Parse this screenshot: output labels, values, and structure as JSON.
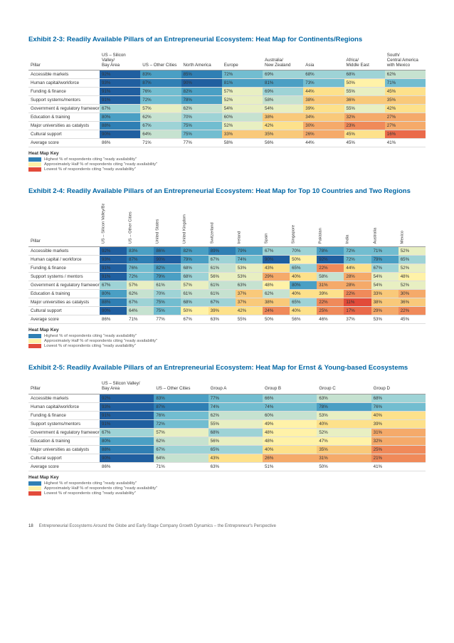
{
  "palette": {
    "gradient": [
      "#e24b3a",
      "#ea6a4a",
      "#f08a5a",
      "#f5aa6a",
      "#f9c97a",
      "#fde18b",
      "#fff2a8",
      "#e8efc2",
      "#c6e2d0",
      "#9ed3d6",
      "#72bdd0",
      "#4a9fc4",
      "#2f7fb4",
      "#205fa0"
    ],
    "gradient_min": 10,
    "gradient_max": 93
  },
  "key": {
    "title": "Heat Map Key",
    "items": [
      {
        "color": "#2f7fb4",
        "label": "Highest % of respondents citing \"ready availability\""
      },
      {
        "color": "#fff2a8",
        "label": "Approximately Half % of respondents citing \"ready availability\""
      },
      {
        "color": "#e24b3a",
        "label": "Lowest % of respondents citing \"ready availability\""
      }
    ]
  },
  "exhibit23": {
    "title": "Exhibit 2-3: Readily Available Pillars of an Entrepreneurial Ecosystem: Heat Map for Continents/Regions",
    "pillar_header": "Pillar",
    "columns": [
      "US – Silicon Valley/Bay Area",
      "US – Other Cities",
      "North America",
      "Europe",
      "Australia/ New Zealand",
      "Asia",
      "Africa/Middle East",
      "South/Central America with Mexico"
    ],
    "rows": [
      {
        "pillar": "Accessible markets",
        "vals": [
          92,
          83,
          85,
          72,
          69,
          68,
          68,
          62
        ]
      },
      {
        "pillar": "Human capital/workforce",
        "vals": [
          93,
          87,
          90,
          81,
          81,
          73,
          50,
          71
        ]
      },
      {
        "pillar": "Funding & finance",
        "vals": [
          91,
          76,
          82,
          57,
          69,
          44,
          55,
          45
        ]
      },
      {
        "pillar": "Support systems/mentors",
        "vals": [
          91,
          72,
          78,
          52,
          58,
          38,
          36,
          35
        ]
      },
      {
        "pillar": "Government & regulatory framework",
        "vals": [
          67,
          57,
          62,
          54,
          54,
          39,
          55,
          42
        ]
      },
      {
        "pillar": "Education & training",
        "vals": [
          80,
          62,
          70,
          60,
          38,
          34,
          32,
          27
        ]
      },
      {
        "pillar": "Major universities as catalysts",
        "vals": [
          88,
          67,
          75,
          52,
          42,
          30,
          23,
          27
        ]
      },
      {
        "pillar": "Cultural support",
        "vals": [
          90,
          64,
          75,
          33,
          35,
          26,
          45,
          16
        ]
      }
    ],
    "avg_label": "Average score",
    "avg": [
      86,
      71,
      77,
      58,
      56,
      44,
      45,
      41
    ]
  },
  "exhibit24": {
    "title": "Exhibit 2-4: Readily Available Pillars of an Entrepreneurial Ecosystem: Heat Map for Top 10 Countries and Two Regions",
    "pillar_header": "Pillar",
    "columns": [
      "US – Silicon Valley/Bay Area",
      "US – Other Cities",
      "United States",
      "United Kingdom",
      "Switzerland",
      "Ireland",
      "Spain",
      "Singapore",
      "Pakistan",
      "India",
      "Australia",
      "Mexico"
    ],
    "rows": [
      {
        "pillar": "Accessible markets",
        "vals": [
          92,
          83,
          86,
          82,
          89,
          79,
          67,
          70,
          78,
          72,
          71,
          52
        ]
      },
      {
        "pillar": "Human capital / workforce",
        "vals": [
          93,
          87,
          90,
          79,
          67,
          74,
          90,
          50,
          92,
          72,
          79,
          65
        ]
      },
      {
        "pillar": "Funding & finance",
        "vals": [
          91,
          76,
          82,
          68,
          61,
          53,
          43,
          65,
          22,
          44,
          67,
          52
        ]
      },
      {
        "pillar": "Support systems / mentors",
        "vals": [
          91,
          72,
          79,
          68,
          56,
          53,
          29,
          40,
          58,
          28,
          54,
          48
        ]
      },
      {
        "pillar": "Government & regulatory framework",
        "vals": [
          67,
          57,
          61,
          57,
          61,
          63,
          48,
          80,
          31,
          28,
          54,
          52
        ]
      },
      {
        "pillar": "Education & training",
        "vals": [
          80,
          62,
          70,
          61,
          61,
          37,
          62,
          40,
          39,
          22,
          33,
          30
        ]
      },
      {
        "pillar": "Major universities as catalysts",
        "vals": [
          88,
          67,
          75,
          68,
          67,
          37,
          38,
          65,
          22,
          11,
          38,
          36
        ]
      },
      {
        "pillar": "Cultural support",
        "vals": [
          90,
          64,
          75,
          50,
          39,
          42,
          24,
          40,
          25,
          17,
          29,
          22
        ]
      }
    ],
    "avg_label": "Average score",
    "avg": [
      86,
      71,
      77,
      67,
      63,
      55,
      50,
      56,
      46,
      37,
      53,
      45
    ]
  },
  "exhibit25": {
    "title": "Exhibit 2-5: Readily Available Pillars of an Entrepreneurial Ecosystem: Heat Map for Ernst & Young-based Ecosystems",
    "pillar_header": "Pillar",
    "columns": [
      "US – Silicon Valley/ Bay Area",
      "US – Other Cities",
      "Group A",
      "Group B",
      "Group C",
      "Group D"
    ],
    "rows": [
      {
        "pillar": "Accessible markets",
        "vals": [
          92,
          83,
          77,
          66,
          63,
          68
        ]
      },
      {
        "pillar": "Human capital/workforce",
        "vals": [
          93,
          87,
          74,
          74,
          78,
          76
        ]
      },
      {
        "pillar": "Funding & finance",
        "vals": [
          91,
          76,
          62,
          60,
          53,
          40
        ]
      },
      {
        "pillar": "Support systems/mentors",
        "vals": [
          91,
          72,
          55,
          49,
          40,
          39
        ]
      },
      {
        "pillar": "Government & regulatory framework",
        "vals": [
          67,
          57,
          68,
          48,
          52,
          31
        ]
      },
      {
        "pillar": "Education & training",
        "vals": [
          80,
          62,
          56,
          48,
          47,
          32
        ]
      },
      {
        "pillar": "Major universities as catalysts",
        "vals": [
          88,
          67,
          65,
          40,
          35,
          25
        ]
      },
      {
        "pillar": "Cultural support",
        "vals": [
          90,
          64,
          43,
          26,
          31,
          21
        ]
      }
    ],
    "avg_label": "Average score",
    "avg": [
      86,
      71,
      63,
      51,
      50,
      41
    ]
  },
  "footer": {
    "page": "18",
    "caption": "Entrepreneurial Ecosystems Around the Globe and Early-Stage Company Growth Dynamics – the Entrepreneur's Perspective"
  }
}
